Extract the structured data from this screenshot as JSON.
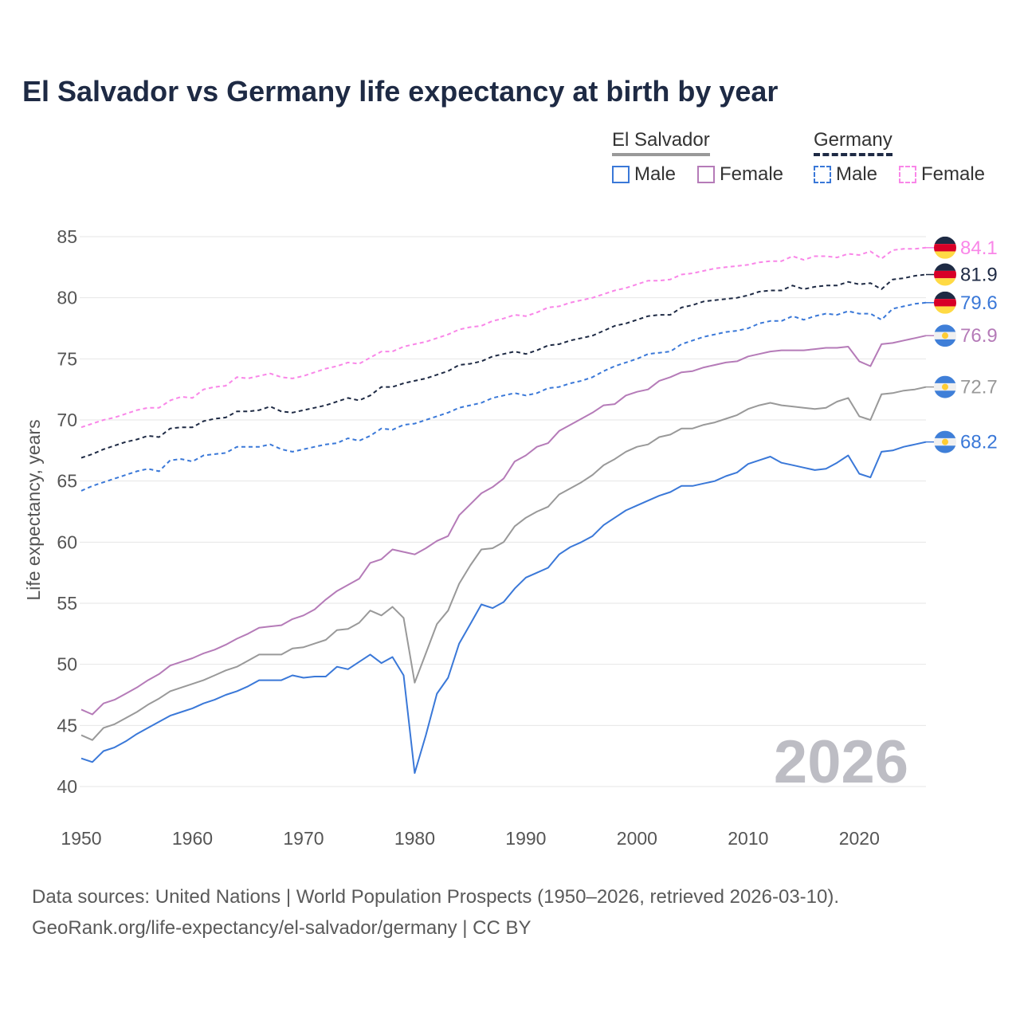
{
  "chart_data": {
    "type": "line",
    "title": "El Salvador vs Germany life expectancy at birth by year",
    "xlabel": "",
    "ylabel": "Life expectancy, years",
    "xlim": [
      1950,
      2026
    ],
    "ylim": [
      40,
      85
    ],
    "x_ticks": [
      "1950",
      "1960",
      "1970",
      "1980",
      "1990",
      "2000",
      "2010",
      "2020"
    ],
    "y_ticks": [
      "40",
      "45",
      "50",
      "55",
      "60",
      "65",
      "70",
      "75",
      "80",
      "85"
    ],
    "grid": true,
    "year_watermark": "2026",
    "start_year": 1950,
    "legend": {
      "groups": [
        {
          "name": "El Salvador",
          "color": "#999999",
          "dashed": false
        },
        {
          "name": "Germany",
          "color": "#1e2a44",
          "dashed": true
        }
      ],
      "items": [
        {
          "label": "Male",
          "color": "#3a78d8",
          "dashed": false
        },
        {
          "label": "Female",
          "color": "#b57bb8",
          "dashed": false
        },
        {
          "label": "Male",
          "color": "#3a78d8",
          "dashed": true
        },
        {
          "label": "Female",
          "color": "#f986e8",
          "dashed": true
        }
      ]
    },
    "series": [
      {
        "name": "Germany Female",
        "country": "germany",
        "color": "#f986e8",
        "dashed": true,
        "end_label": "84.1",
        "values": [
          69.4,
          69.7,
          70.0,
          70.2,
          70.5,
          70.8,
          71.0,
          71.0,
          71.6,
          71.9,
          71.8,
          72.5,
          72.7,
          72.8,
          73.5,
          73.4,
          73.6,
          73.8,
          73.5,
          73.4,
          73.6,
          73.9,
          74.2,
          74.4,
          74.7,
          74.6,
          75.1,
          75.6,
          75.6,
          76.0,
          76.2,
          76.4,
          76.7,
          77.0,
          77.4,
          77.6,
          77.7,
          78.1,
          78.3,
          78.6,
          78.5,
          78.8,
          79.2,
          79.3,
          79.6,
          79.8,
          80.0,
          80.3,
          80.6,
          80.8,
          81.1,
          81.4,
          81.4,
          81.5,
          81.9,
          82.0,
          82.2,
          82.4,
          82.5,
          82.6,
          82.7,
          82.9,
          83.0,
          83.0,
          83.4,
          83.1,
          83.4,
          83.4,
          83.3,
          83.6,
          83.5,
          83.8,
          83.2,
          83.9,
          84.0,
          84.0,
          84.1
        ]
      },
      {
        "name": "Germany",
        "country": "germany",
        "color": "#1e2a44",
        "dashed": true,
        "end_label": "81.9",
        "values": [
          66.9,
          67.2,
          67.6,
          67.9,
          68.2,
          68.4,
          68.7,
          68.6,
          69.3,
          69.4,
          69.4,
          69.9,
          70.1,
          70.2,
          70.7,
          70.7,
          70.8,
          71.1,
          70.7,
          70.6,
          70.8,
          71.0,
          71.2,
          71.5,
          71.8,
          71.6,
          72.0,
          72.7,
          72.7,
          73.0,
          73.2,
          73.4,
          73.7,
          74.0,
          74.5,
          74.6,
          74.8,
          75.2,
          75.4,
          75.6,
          75.4,
          75.7,
          76.1,
          76.2,
          76.5,
          76.7,
          76.9,
          77.3,
          77.7,
          77.9,
          78.2,
          78.5,
          78.6,
          78.6,
          79.2,
          79.4,
          79.7,
          79.8,
          79.9,
          80.0,
          80.2,
          80.5,
          80.6,
          80.6,
          81.0,
          80.7,
          80.9,
          81.0,
          81.0,
          81.3,
          81.1,
          81.2,
          80.7,
          81.5,
          81.6,
          81.8,
          81.9
        ]
      },
      {
        "name": "Germany Male",
        "country": "germany",
        "color": "#3a78d8",
        "dashed": true,
        "end_label": "79.6",
        "values": [
          64.2,
          64.6,
          64.9,
          65.2,
          65.5,
          65.8,
          66.0,
          65.8,
          66.7,
          66.8,
          66.6,
          67.1,
          67.2,
          67.3,
          67.8,
          67.8,
          67.8,
          68.0,
          67.6,
          67.4,
          67.6,
          67.8,
          68.0,
          68.1,
          68.5,
          68.3,
          68.7,
          69.3,
          69.2,
          69.6,
          69.7,
          70.0,
          70.3,
          70.6,
          71.0,
          71.2,
          71.4,
          71.8,
          72.0,
          72.2,
          72.0,
          72.2,
          72.6,
          72.7,
          73.0,
          73.2,
          73.5,
          74.0,
          74.4,
          74.7,
          75.0,
          75.4,
          75.5,
          75.6,
          76.2,
          76.5,
          76.8,
          77.0,
          77.2,
          77.3,
          77.5,
          77.9,
          78.1,
          78.1,
          78.5,
          78.2,
          78.5,
          78.7,
          78.6,
          78.9,
          78.7,
          78.7,
          78.2,
          79.1,
          79.3,
          79.5,
          79.6
        ]
      },
      {
        "name": "El Salvador Female",
        "country": "el-salvador",
        "color": "#b57bb8",
        "dashed": false,
        "end_label": "76.9",
        "values": [
          46.3,
          45.9,
          46.8,
          47.1,
          47.6,
          48.1,
          48.7,
          49.2,
          49.9,
          50.2,
          50.5,
          50.9,
          51.2,
          51.6,
          52.1,
          52.5,
          53.0,
          53.1,
          53.2,
          53.7,
          54.0,
          54.5,
          55.3,
          56.0,
          56.5,
          57.0,
          58.3,
          58.6,
          59.4,
          59.2,
          59.0,
          59.5,
          60.1,
          60.5,
          62.2,
          63.1,
          64.0,
          64.5,
          65.2,
          66.6,
          67.1,
          67.8,
          68.1,
          69.1,
          69.6,
          70.1,
          70.6,
          71.2,
          71.3,
          72.0,
          72.3,
          72.5,
          73.2,
          73.5,
          73.9,
          74.0,
          74.3,
          74.5,
          74.7,
          74.8,
          75.2,
          75.4,
          75.6,
          75.7,
          75.7,
          75.7,
          75.8,
          75.9,
          75.9,
          76.0,
          74.8,
          74.4,
          76.2,
          76.3,
          76.5,
          76.7,
          76.9
        ]
      },
      {
        "name": "El Salvador",
        "country": "el-salvador",
        "color": "#999999",
        "dashed": false,
        "end_label": "72.7",
        "values": [
          44.2,
          43.8,
          44.8,
          45.1,
          45.6,
          46.1,
          46.7,
          47.2,
          47.8,
          48.1,
          48.4,
          48.7,
          49.1,
          49.5,
          49.8,
          50.3,
          50.8,
          50.8,
          50.8,
          51.3,
          51.4,
          51.7,
          52.0,
          52.8,
          52.9,
          53.4,
          54.4,
          54.0,
          54.7,
          53.8,
          48.5,
          50.9,
          53.3,
          54.4,
          56.6,
          58.1,
          59.4,
          59.5,
          60.0,
          61.3,
          62.0,
          62.5,
          62.9,
          63.9,
          64.4,
          64.9,
          65.5,
          66.3,
          66.8,
          67.4,
          67.8,
          68.0,
          68.6,
          68.8,
          69.3,
          69.3,
          69.6,
          69.8,
          70.1,
          70.4,
          70.9,
          71.2,
          71.4,
          71.2,
          71.1,
          71.0,
          70.9,
          71.0,
          71.5,
          71.8,
          70.3,
          70.0,
          72.1,
          72.2,
          72.4,
          72.5,
          72.7
        ]
      },
      {
        "name": "El Salvador Male",
        "country": "el-salvador",
        "color": "#3a78d8",
        "dashed": false,
        "end_label": "68.2",
        "values": [
          42.3,
          42.0,
          42.9,
          43.2,
          43.7,
          44.3,
          44.8,
          45.3,
          45.8,
          46.1,
          46.4,
          46.8,
          47.1,
          47.5,
          47.8,
          48.2,
          48.7,
          48.7,
          48.7,
          49.1,
          48.9,
          49.0,
          49.0,
          49.8,
          49.6,
          50.2,
          50.8,
          50.1,
          50.6,
          49.1,
          41.1,
          44.2,
          47.6,
          48.9,
          51.7,
          53.3,
          54.9,
          54.6,
          55.1,
          56.2,
          57.1,
          57.5,
          57.9,
          59.0,
          59.6,
          60.0,
          60.5,
          61.4,
          62.0,
          62.6,
          63.0,
          63.4,
          63.8,
          64.1,
          64.6,
          64.6,
          64.8,
          65.0,
          65.4,
          65.7,
          66.4,
          66.7,
          67.0,
          66.5,
          66.3,
          66.1,
          65.9,
          66.0,
          66.5,
          67.1,
          65.6,
          65.3,
          67.4,
          67.5,
          67.8,
          68.0,
          68.2
        ]
      }
    ]
  },
  "footer": {
    "line1": "Data sources: United Nations | World Population Prospects (1950–2026, retrieved 2026-03-10).",
    "line2": "GeoRank.org/life-expectancy/el-salvador/germany | CC BY"
  }
}
